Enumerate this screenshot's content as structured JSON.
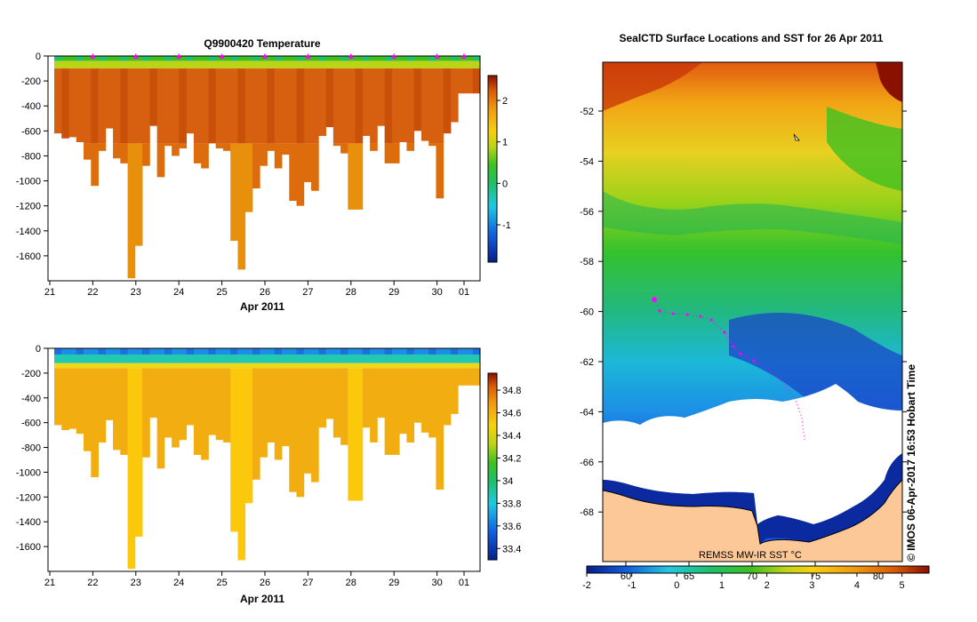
{
  "chart_data": [
    {
      "type": "heatmap",
      "title": "Q9900420  Temperature",
      "xlabel": "Apr 2011",
      "x_ticks": [
        "21",
        "22",
        "23",
        "24",
        "25",
        "26",
        "27",
        "28",
        "29",
        "30",
        "01"
      ],
      "y_ticks": [
        "0",
        "-200",
        "-400",
        "-600",
        "-800",
        "-1000",
        "-1200",
        "-1400",
        "-1600"
      ],
      "ylim": [
        -1800,
        0
      ],
      "colorbar": {
        "ticks": [
          "-1",
          "0",
          "1",
          "2"
        ],
        "range": [
          -1.9,
          2.6
        ]
      },
      "depth_profile_note": "Profile depths shown as columns",
      "surface_markers": [
        "22",
        "23",
        "24",
        "25",
        "26",
        "27",
        "28",
        "29",
        "30",
        "01"
      ]
    },
    {
      "type": "heatmap",
      "title": "",
      "xlabel": "Apr 2011",
      "x_ticks": [
        "21",
        "22",
        "23",
        "24",
        "25",
        "26",
        "27",
        "28",
        "29",
        "30",
        "01"
      ],
      "y_ticks": [
        "0",
        "-200",
        "-400",
        "-600",
        "-800",
        "-1000",
        "-1200",
        "-1400",
        "-1600"
      ],
      "ylim": [
        -1800,
        0
      ],
      "colorbar": {
        "ticks": [
          "33.4",
          "33.6",
          "33.8",
          "34",
          "34.2",
          "34.4",
          "34.6",
          "34.8"
        ],
        "range": [
          33.3,
          34.95
        ]
      }
    },
    {
      "type": "heatmap",
      "title": "SealCTD Surface Locations and SST for 26 Apr 2011",
      "y_ticks": [
        "-52",
        "-54",
        "-56",
        "-58",
        "-60",
        "-62",
        "-64",
        "-66",
        "-68"
      ],
      "x_ticks": [
        "60",
        "65",
        "70",
        "75",
        "80"
      ],
      "colorbar": {
        "ticks": [
          "-2",
          "-1",
          "0",
          "1",
          "2",
          "3",
          "4",
          "5"
        ],
        "range": [
          -2,
          5.6
        ]
      },
      "map_label": "REMSS MW-IR SST °C",
      "credit": "© IMOS 06-Apr-2017 16:53 Hobart Time"
    }
  ],
  "profile_depths": [
    620,
    660,
    650,
    690,
    830,
    1040,
    760,
    580,
    820,
    860,
    1780,
    1520,
    880,
    560,
    970,
    720,
    800,
    740,
    620,
    860,
    900,
    700,
    740,
    760,
    1480,
    1710,
    1250,
    1060,
    880,
    760,
    900,
    790,
    1160,
    1200,
    1010,
    1080,
    640,
    570,
    720,
    780,
    1230,
    1230,
    640,
    760,
    560,
    860,
    860,
    690,
    760,
    600,
    680,
    720,
    1140,
    620,
    530,
    300,
    300,
    300
  ]
}
